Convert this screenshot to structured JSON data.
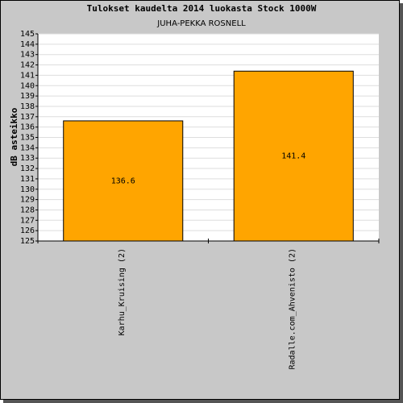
{
  "chart_data": {
    "type": "bar",
    "title": "Tulokset kaudelta 2014 luokasta Stock 1000W",
    "subtitle": "JUHA-PEKKA ROSNELL",
    "y_label": "dB asteikko",
    "categories": [
      "Karhu_Kruising (2)",
      "Radalle.com_Ahvenisto (2)"
    ],
    "values": [
      136.6,
      141.4
    ],
    "color": "#ffa500",
    "ylim": [
      125,
      145
    ],
    "yticks": [
      125,
      126,
      127,
      128,
      129,
      130,
      131,
      132,
      133,
      134,
      135,
      136,
      137,
      138,
      139,
      140,
      141,
      142,
      143,
      144,
      145
    ],
    "grid": true
  }
}
